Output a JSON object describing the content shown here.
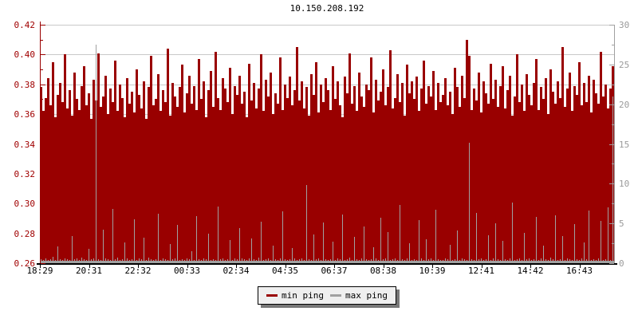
{
  "title": "10.150.208.192",
  "colors": {
    "min_ping": "#990000",
    "max_ping": "#a0a0a0",
    "left_axis_text": "#a00000",
    "right_axis_text": "#9a9a9a",
    "grid": "#c8c8c8",
    "x_axis": "#000000",
    "page_bg": "#ffffff",
    "legend_bg": "#efefef",
    "legend_border": "#000000",
    "legend_shadow": "#777777"
  },
  "chart_data": {
    "type": "area",
    "title": "10.150.208.192",
    "grid": "horizontal-only",
    "legend_position": "bottom-center",
    "x_tick_labels": [
      "18:29",
      "20:31",
      "22:32",
      "00:33",
      "02:34",
      "04:35",
      "06:37",
      "08:38",
      "10:39",
      "12:41",
      "14:42",
      "16:43"
    ],
    "left_axis": {
      "min": 0.26,
      "max": 0.42,
      "label_step": 0.02,
      "minor_tick_step": 0.01,
      "tick_labels": [
        "0.42",
        "0.40",
        "0.38",
        "0.36",
        "0.34",
        "0.32",
        "0.30",
        "0.28",
        "0.26"
      ],
      "color": "#a00000"
    },
    "right_axis": {
      "min": 0,
      "max": 30,
      "label_step": 5,
      "minor_tick_step": 2.5,
      "tick_labels": [
        "30",
        "25",
        "20",
        "15",
        "10",
        "5",
        "0"
      ],
      "color": "#9a9a9a"
    },
    "legend": [
      {
        "name": "min ping",
        "color": "#990000"
      },
      {
        "name": "max ping",
        "color": "#a0a0a0"
      }
    ],
    "series": [
      {
        "name": "min ping",
        "axis": "left",
        "style": "area",
        "color": "#990000",
        "values": [
          0.378,
          0.362,
          0.371,
          0.384,
          0.366,
          0.395,
          0.358,
          0.373,
          0.381,
          0.368,
          0.4,
          0.364,
          0.376,
          0.359,
          0.388,
          0.37,
          0.363,
          0.379,
          0.392,
          0.366,
          0.374,
          0.357,
          0.383,
          0.369,
          0.401,
          0.365,
          0.372,
          0.386,
          0.36,
          0.377,
          0.368,
          0.396,
          0.362,
          0.38,
          0.371,
          0.358,
          0.384,
          0.367,
          0.375,
          0.361,
          0.39,
          0.373,
          0.364,
          0.382,
          0.357,
          0.378,
          0.399,
          0.366,
          0.37,
          0.387,
          0.362,
          0.376,
          0.368,
          0.404,
          0.359,
          0.381,
          0.372,
          0.365,
          0.378,
          0.393,
          0.361,
          0.374,
          0.386,
          0.367,
          0.379,
          0.363,
          0.397,
          0.37,
          0.382,
          0.358,
          0.376,
          0.389,
          0.365,
          0.402,
          0.371,
          0.363,
          0.384,
          0.377,
          0.368,
          0.391,
          0.36,
          0.379,
          0.373,
          0.386,
          0.367,
          0.375,
          0.358,
          0.394,
          0.369,
          0.381,
          0.364,
          0.377,
          0.4,
          0.362,
          0.383,
          0.372,
          0.388,
          0.36,
          0.374,
          0.367,
          0.398,
          0.363,
          0.38,
          0.371,
          0.385,
          0.366,
          0.376,
          0.405,
          0.369,
          0.382,
          0.364,
          0.378,
          0.359,
          0.387,
          0.373,
          0.395,
          0.361,
          0.38,
          0.368,
          0.384,
          0.376,
          0.363,
          0.392,
          0.37,
          0.382,
          0.366,
          0.358,
          0.385,
          0.374,
          0.401,
          0.367,
          0.379,
          0.362,
          0.388,
          0.372,
          0.365,
          0.38,
          0.376,
          0.398,
          0.361,
          0.383,
          0.369,
          0.375,
          0.39,
          0.366,
          0.378,
          0.403,
          0.364,
          0.371,
          0.387,
          0.368,
          0.381,
          0.359,
          0.393,
          0.374,
          0.382,
          0.37,
          0.385,
          0.362,
          0.377,
          0.396,
          0.367,
          0.379,
          0.372,
          0.389,
          0.363,
          0.381,
          0.368,
          0.373,
          0.384,
          0.366,
          0.375,
          0.36,
          0.391,
          0.378,
          0.365,
          0.386,
          0.371,
          0.41,
          0.399,
          0.363,
          0.377,
          0.369,
          0.388,
          0.361,
          0.382,
          0.374,
          0.367,
          0.394,
          0.37,
          0.383,
          0.365,
          0.379,
          0.392,
          0.364,
          0.376,
          0.386,
          0.359,
          0.372,
          0.4,
          0.368,
          0.38,
          0.362,
          0.387,
          0.373,
          0.366,
          0.381,
          0.397,
          0.363,
          0.378,
          0.37,
          0.384,
          0.36,
          0.39,
          0.375,
          0.367,
          0.382,
          0.371,
          0.405,
          0.365,
          0.377,
          0.388,
          0.362,
          0.379,
          0.373,
          0.395,
          0.366,
          0.381,
          0.368,
          0.386,
          0.361,
          0.383,
          0.374,
          0.367,
          0.402,
          0.372,
          0.38,
          0.364,
          0.377,
          0.392
        ]
      },
      {
        "name": "max ping",
        "axis": "right",
        "style": "spikes",
        "color": "#a0a0a0",
        "values": [
          0.5,
          0.4,
          0.6,
          0.4,
          0.5,
          0.8,
          0.4,
          2.1,
          0.5,
          0.4,
          0.6,
          0.5,
          0.4,
          3.4,
          0.5,
          0.6,
          0.4,
          0.7,
          0.5,
          0.4,
          1.8,
          0.5,
          0.6,
          27.5,
          0.5,
          0.4,
          4.2,
          0.6,
          0.5,
          0.4,
          6.8,
          0.5,
          0.7,
          0.4,
          0.5,
          2.6,
          0.6,
          0.4,
          0.5,
          5.5,
          0.4,
          0.6,
          0.5,
          3.2,
          0.4,
          0.7,
          0.5,
          0.4,
          0.5,
          6.2,
          0.4,
          0.6,
          0.5,
          0.4,
          2.4,
          0.5,
          0.6,
          4.8,
          0.4,
          0.5,
          0.4,
          0.6,
          0.5,
          1.5,
          0.4,
          5.9,
          0.5,
          0.4,
          0.6,
          0.5,
          3.7,
          0.4,
          0.5,
          0.4,
          7.1,
          0.5,
          0.6,
          0.4,
          0.5,
          2.9,
          0.4,
          0.6,
          0.5,
          4.4,
          0.6,
          0.5,
          0.4,
          0.6,
          3.1,
          0.5,
          0.4,
          0.7,
          5.2,
          0.4,
          0.5,
          0.6,
          0.4,
          2.2,
          0.5,
          0.4,
          0.6,
          6.5,
          0.5,
          0.4,
          0.5,
          1.9,
          0.6,
          0.4,
          0.5,
          0.6,
          0.4,
          9.8,
          0.5,
          0.4,
          3.6,
          0.5,
          0.6,
          0.4,
          5.1,
          0.5,
          0.4,
          0.5,
          2.7,
          0.4,
          0.6,
          0.5,
          6.1,
          0.4,
          0.5,
          0.7,
          0.4,
          3.3,
          0.5,
          0.4,
          0.6,
          4.6,
          0.5,
          0.4,
          0.5,
          2.0,
          0.6,
          0.4,
          5.7,
          0.5,
          0.6,
          3.9,
          0.4,
          0.5,
          0.6,
          0.4,
          7.3,
          0.5,
          0.4,
          0.6,
          2.5,
          0.4,
          0.5,
          0.4,
          5.4,
          0.6,
          0.4,
          3.0,
          0.5,
          0.6,
          0.4,
          6.7,
          0.5,
          0.4,
          0.4,
          0.6,
          0.5,
          2.3,
          0.4,
          0.5,
          4.1,
          0.4,
          0.6,
          0.5,
          0.4,
          15.2,
          0.5,
          0.4,
          6.3,
          0.5,
          0.6,
          0.4,
          0.5,
          3.5,
          0.4,
          0.6,
          5.0,
          0.5,
          0.4,
          2.8,
          0.5,
          0.4,
          0.6,
          7.6,
          0.4,
          0.5,
          0.6,
          0.4,
          3.8,
          0.5,
          0.6,
          0.4,
          0.5,
          5.8,
          0.4,
          0.6,
          2.2,
          0.5,
          0.4,
          0.7,
          0.5,
          6.0,
          0.4,
          0.5,
          3.4,
          0.4,
          0.6,
          0.5,
          0.4,
          4.9,
          0.5,
          0.4,
          0.6,
          2.6,
          0.5,
          6.6,
          0.4,
          0.5,
          0.4,
          0.6,
          5.3,
          0.4,
          0.5,
          7.0,
          0.4,
          21.0
        ]
      }
    ]
  }
}
